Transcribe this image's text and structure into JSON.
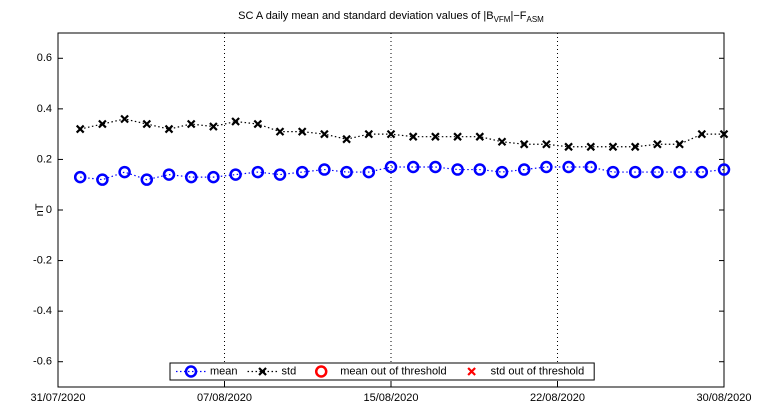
{
  "chart_data": {
    "type": "line",
    "title": [
      "SC A daily mean and standard deviation values of |B",
      "VFM",
      "|−F",
      "ASM"
    ],
    "ylabel": "nT",
    "x": [
      1,
      2,
      3,
      4,
      5,
      6,
      7,
      8,
      9,
      10,
      11,
      12,
      13,
      14,
      15,
      16,
      17,
      18,
      19,
      20,
      21,
      22,
      23,
      24,
      25,
      26,
      27,
      28,
      29,
      30
    ],
    "xlim": [
      0,
      30
    ],
    "xticks": [
      {
        "value": 0,
        "label": "31/07/2020"
      },
      {
        "value": 7.5,
        "label": "07/08/2020"
      },
      {
        "value": 15,
        "label": "15/08/2020"
      },
      {
        "value": 22.5,
        "label": "22/08/2020"
      },
      {
        "value": 30,
        "label": "30/08/2020"
      }
    ],
    "ylim": [
      -0.7,
      0.7
    ],
    "yticks": [
      -0.6,
      -0.4,
      -0.2,
      0,
      0.2,
      0.4,
      0.6
    ],
    "xgrid": true,
    "legend": "bottom",
    "series": [
      {
        "name": "mean",
        "color": "#0000ff",
        "marker": "circle",
        "values": [
          0.13,
          0.12,
          0.15,
          0.12,
          0.14,
          0.13,
          0.13,
          0.14,
          0.15,
          0.14,
          0.15,
          0.16,
          0.15,
          0.15,
          0.17,
          0.17,
          0.17,
          0.16,
          0.16,
          0.15,
          0.16,
          0.17,
          0.17,
          0.17,
          0.15,
          0.15,
          0.15,
          0.15,
          0.15,
          0.16
        ]
      },
      {
        "name": "std",
        "color": "#000000",
        "marker": "x",
        "values": [
          0.32,
          0.34,
          0.36,
          0.34,
          0.32,
          0.34,
          0.33,
          0.35,
          0.34,
          0.31,
          0.31,
          0.3,
          0.28,
          0.3,
          0.3,
          0.29,
          0.29,
          0.29,
          0.29,
          0.27,
          0.26,
          0.26,
          0.25,
          0.25,
          0.25,
          0.25,
          0.26,
          0.26,
          0.3,
          0.3
        ]
      },
      {
        "name": "mean out of threshold",
        "color": "#ff0000",
        "marker": "circle",
        "values": [
          null,
          null,
          null,
          null,
          null,
          null,
          null,
          null,
          null,
          null,
          null,
          null,
          null,
          null,
          null,
          null,
          null,
          null,
          null,
          null,
          null,
          null,
          null,
          null,
          null,
          null,
          null,
          null,
          null,
          null
        ]
      },
      {
        "name": "std out of threshold",
        "color": "#ff0000",
        "marker": "x",
        "values": [
          null,
          null,
          null,
          null,
          null,
          null,
          null,
          null,
          null,
          null,
          null,
          null,
          null,
          null,
          null,
          null,
          null,
          null,
          null,
          null,
          null,
          null,
          null,
          null,
          null,
          null,
          null,
          null,
          null,
          null
        ]
      }
    ]
  }
}
